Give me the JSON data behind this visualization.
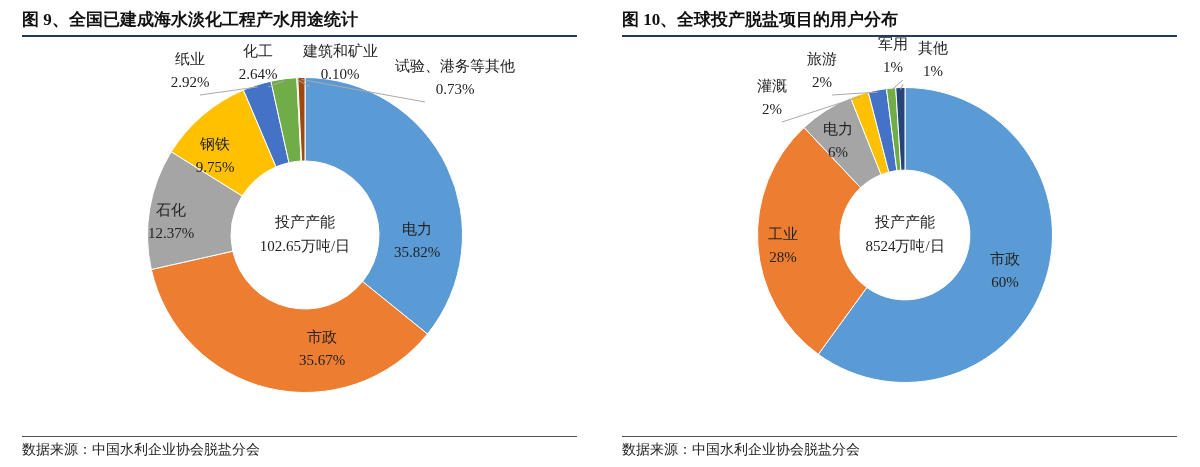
{
  "chart_data": [
    {
      "type": "donut",
      "title": "图 9、全国已建成海水淡化工程产水用途统计",
      "categories": [
        "电力",
        "市政",
        "石化",
        "钢铁",
        "纸业",
        "化工",
        "建筑和矿业",
        "试验、港务等其他"
      ],
      "values": [
        35.82,
        35.67,
        12.37,
        9.75,
        2.92,
        2.64,
        0.1,
        0.73
      ],
      "colors": [
        "#5b9bd5",
        "#ed7d31",
        "#a5a5a5",
        "#ffc000",
        "#4472c4",
        "#70ad47",
        "#264478",
        "#9e480e"
      ],
      "value_labels": [
        "35.82%",
        "35.67%",
        "12.37%",
        "9.75%",
        "2.92%",
        "2.64%",
        "0.10%",
        "0.73%"
      ],
      "annotations": [
        "投产产能",
        "102.65万吨/日",
        "数据来源：中国水利企业协会脱盐分会"
      ],
      "legend": false
    },
    {
      "type": "donut",
      "title": "图 10、全球投产脱盐项目的用户分布",
      "categories": [
        "市政",
        "工业",
        "电力",
        "灌溉",
        "旅游",
        "军用",
        "其他"
      ],
      "values": [
        60,
        28,
        6,
        2,
        2,
        1,
        1
      ],
      "colors": [
        "#5b9bd5",
        "#ed7d31",
        "#a5a5a5",
        "#ffc000",
        "#4472c4",
        "#70ad47",
        "#264478"
      ],
      "value_labels": [
        "60%",
        "28%",
        "6%",
        "2%",
        "2%",
        "1%",
        "1%"
      ],
      "annotations": [
        "投产产能",
        "8524万吨/日",
        "数据来源：中国水利企业协会脱盐分会"
      ],
      "legend": false
    }
  ]
}
